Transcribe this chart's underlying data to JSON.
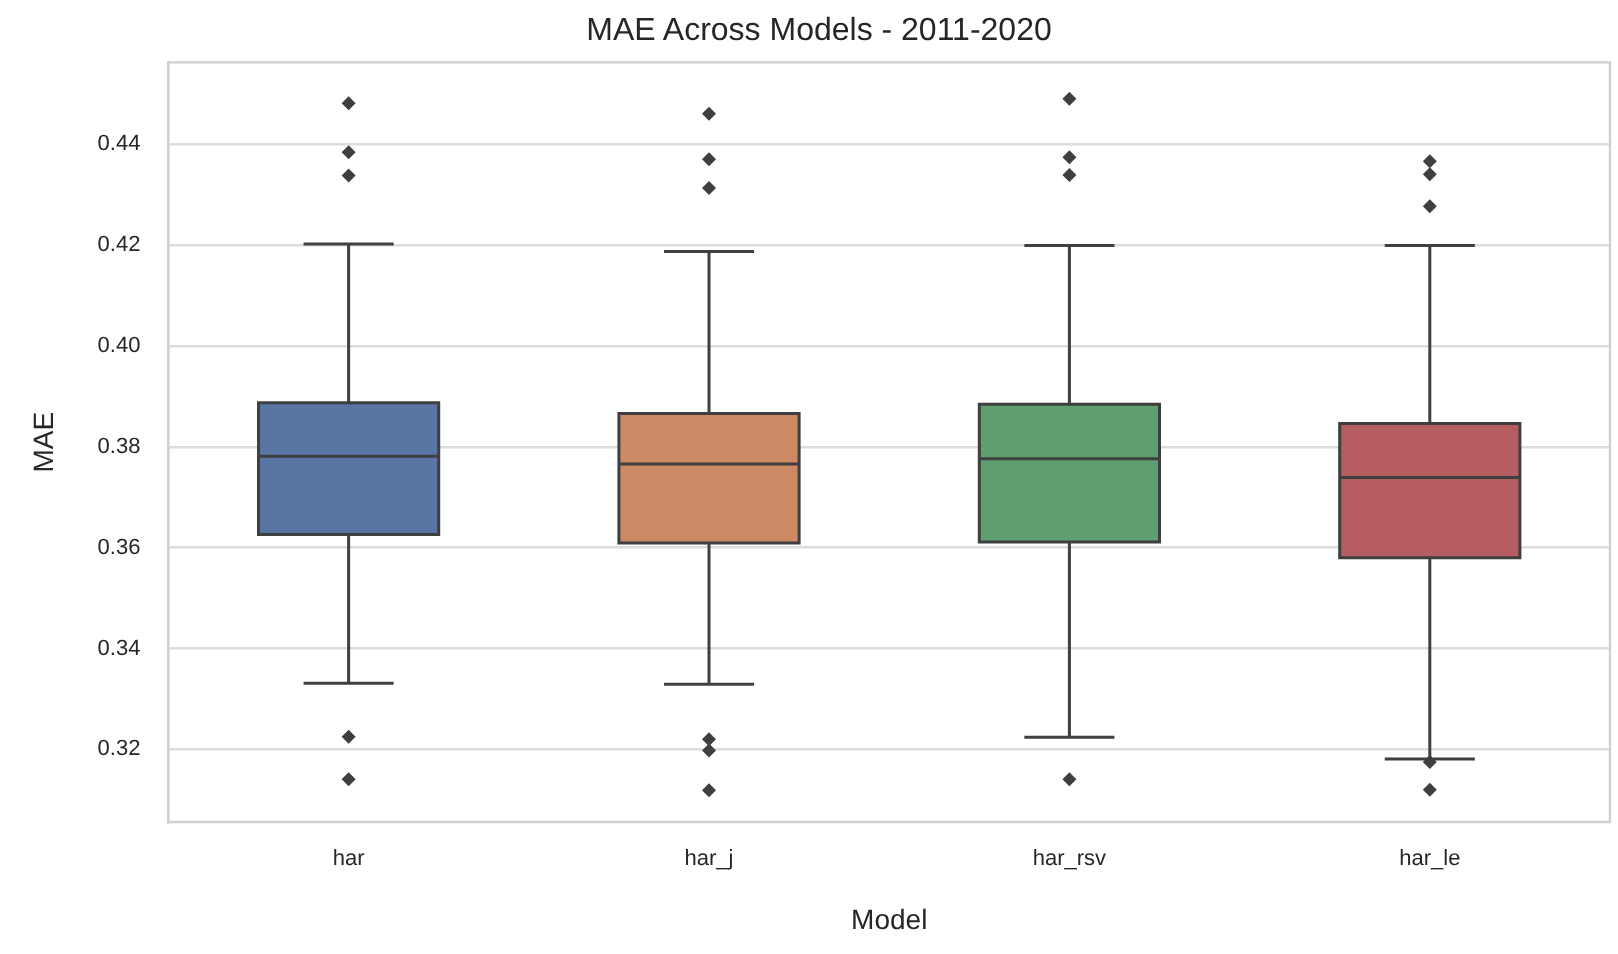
{
  "chart_data": {
    "type": "box",
    "title": "MAE Across Models - 2011-2020",
    "xlabel": "Model",
    "ylabel": "MAE",
    "categories": [
      "har",
      "har_j",
      "har_rsv",
      "har_le"
    ],
    "colors": [
      "#5975a4",
      "#cc8963",
      "#5f9e6e",
      "#b55d60"
    ],
    "boxes": [
      {
        "low": 0.3331,
        "q1": 0.3626,
        "median": 0.3781,
        "q3": 0.3887,
        "high": 0.4202,
        "outliers": [
          0.4481,
          0.4384,
          0.4338,
          0.3225,
          0.3141
        ]
      },
      {
        "low": 0.3329,
        "q1": 0.3609,
        "median": 0.3766,
        "q3": 0.3866,
        "high": 0.4187,
        "outliers": [
          0.446,
          0.437,
          0.4313,
          0.322,
          0.3198,
          0.3119
        ]
      },
      {
        "low": 0.3224,
        "q1": 0.3611,
        "median": 0.3776,
        "q3": 0.3884,
        "high": 0.4199,
        "outliers": [
          0.449,
          0.4374,
          0.4339,
          0.3141
        ]
      },
      {
        "low": 0.3181,
        "q1": 0.358,
        "median": 0.3739,
        "q3": 0.3846,
        "high": 0.4199,
        "outliers": [
          0.4366,
          0.434,
          0.4277,
          0.3175,
          0.312
        ]
      }
    ],
    "ylim": [
      0.3056,
      0.4562
    ],
    "yticks": [
      0.32,
      0.34,
      0.36,
      0.38,
      {
        "value": 0.4,
        "label": "0.40"
      },
      0.42,
      0.44
    ],
    "grid": "y",
    "marker": "diamond"
  }
}
